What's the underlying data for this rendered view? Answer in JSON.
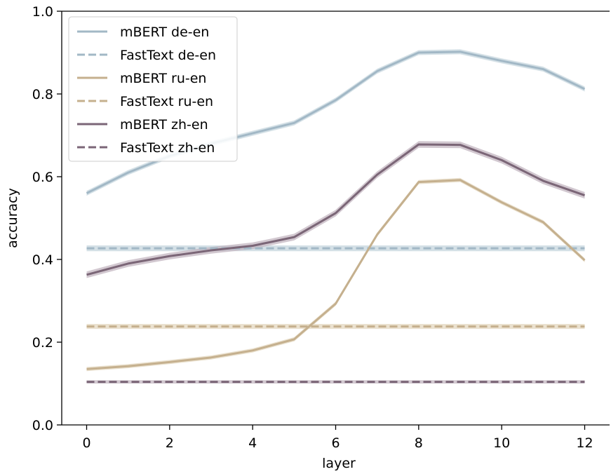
{
  "chart_data": {
    "type": "line",
    "title": "",
    "xlabel": "layer",
    "ylabel": "accuracy",
    "xlim": [
      -0.6,
      12.6
    ],
    "ylim": [
      0.0,
      1.0
    ],
    "xticks": [
      0,
      2,
      4,
      6,
      8,
      10,
      12
    ],
    "xtick_labels": [
      "0",
      "2",
      "4",
      "6",
      "8",
      "10",
      "12"
    ],
    "yticks": [
      0.0,
      0.2,
      0.4,
      0.6,
      0.8,
      1.0
    ],
    "ytick_labels": [
      "0.0",
      "0.2",
      "0.4",
      "0.6",
      "0.8",
      "1.0"
    ],
    "grid": false,
    "legend_position": "upper-left",
    "x": [
      0,
      1,
      2,
      3,
      4,
      5,
      6,
      7,
      8,
      9,
      10,
      11,
      12
    ],
    "series": [
      {
        "name": "mBERT de-en",
        "style": "solid",
        "color": "#a2b8c6",
        "band_color": "#c6d6de",
        "values": [
          0.56,
          0.61,
          0.65,
          0.68,
          0.705,
          0.73,
          0.785,
          0.855,
          0.9,
          0.902,
          0.88,
          0.86,
          0.812
        ],
        "band": 0.006
      },
      {
        "name": "FastText de-en",
        "style": "dashed",
        "color": "#a2b8c6",
        "band_color": "#c6d6de",
        "values": [
          0.427,
          0.427,
          0.427,
          0.427,
          0.427,
          0.427,
          0.427,
          0.427,
          0.427,
          0.427,
          0.427,
          0.427,
          0.427
        ],
        "band": 0.007
      },
      {
        "name": "mBERT ru-en",
        "style": "solid",
        "color": "#c5b08e",
        "band_color": "#e3d7bf",
        "values": [
          0.135,
          0.142,
          0.152,
          0.163,
          0.18,
          0.207,
          0.293,
          0.46,
          0.587,
          0.592,
          0.538,
          0.49,
          0.398
        ],
        "band": 0.005
      },
      {
        "name": "FastText ru-en",
        "style": "dashed",
        "color": "#c5b08e",
        "band_color": "#e3d7bf",
        "values": [
          0.238,
          0.238,
          0.238,
          0.238,
          0.238,
          0.238,
          0.238,
          0.238,
          0.238,
          0.238,
          0.238,
          0.238,
          0.238
        ],
        "band": 0.006
      },
      {
        "name": "mBERT zh-en",
        "style": "solid",
        "color": "#7b6677",
        "band_color": "#c3b5c0",
        "values": [
          0.363,
          0.39,
          0.408,
          0.422,
          0.433,
          0.454,
          0.512,
          0.605,
          0.678,
          0.677,
          0.64,
          0.59,
          0.555
        ],
        "band": 0.008
      },
      {
        "name": "FastText zh-en",
        "style": "dashed",
        "color": "#7b6677",
        "band_color": "#c3b5c0",
        "values": [
          0.104,
          0.104,
          0.104,
          0.104,
          0.104,
          0.104,
          0.104,
          0.104,
          0.104,
          0.104,
          0.104,
          0.104,
          0.104
        ],
        "band": 0.004
      }
    ]
  }
}
